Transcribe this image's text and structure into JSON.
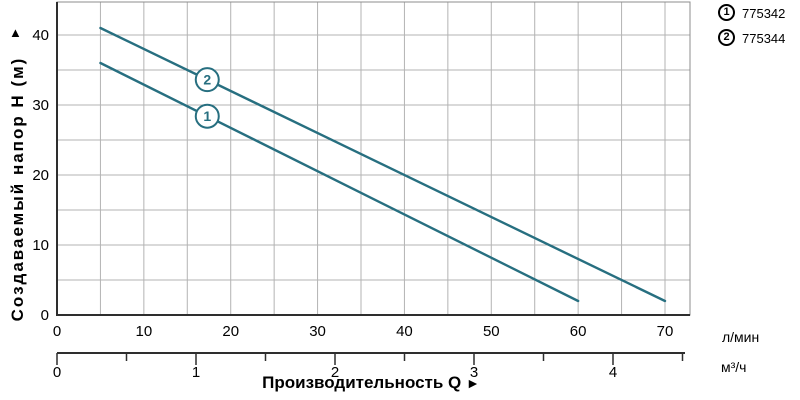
{
  "chart_data": {
    "type": "line",
    "title": "",
    "xlabel": "Производительность Q",
    "ylabel": "Создаваемый напор H (м)",
    "x_unit_primary": "л/мин",
    "x_unit_secondary": "м³/ч",
    "xlim_lmin": [
      0,
      72.9
    ],
    "ylim": [
      0,
      44.7
    ],
    "x_ticks_lmin": [
      0,
      10,
      20,
      30,
      40,
      50,
      60,
      70
    ],
    "y_ticks": [
      0,
      10,
      20,
      30,
      40
    ],
    "grid_step": 5,
    "grid": "on",
    "legend_position": "top-right",
    "secondary_axis": {
      "unit": "м³/ч",
      "ticks": [
        0,
        1,
        2,
        3,
        4
      ],
      "minor_ticks": [
        0.5,
        1.5,
        2.5,
        3.5,
        4.5
      ]
    },
    "series": [
      {
        "num": "1",
        "name": "775342",
        "points": [
          [
            5,
            36
          ],
          [
            60,
            2
          ]
        ],
        "label_at_q": 17.3
      },
      {
        "num": "2",
        "name": "775344",
        "points": [
          [
            5,
            41
          ],
          [
            70,
            2
          ]
        ],
        "label_at_q": 17.3
      }
    ]
  },
  "axes": {
    "y_title": "Создаваемый напор H (м)",
    "y_arrow": "▲",
    "x_title": "Производительность Q",
    "x_arrow": "►",
    "unit_lmin": "л/мин",
    "unit_m3h": "м³/ч"
  },
  "legend": {
    "items": [
      {
        "num": "1",
        "label": "775342"
      },
      {
        "num": "2",
        "label": "775344"
      }
    ]
  },
  "colors": {
    "curve": "#276F80",
    "badge": "#2A7A8C",
    "grid": "#b3b3b3",
    "frame": "#8c8c8c",
    "axis": "#2e2e2e",
    "text": "#000000",
    "background": "#ffffff"
  }
}
